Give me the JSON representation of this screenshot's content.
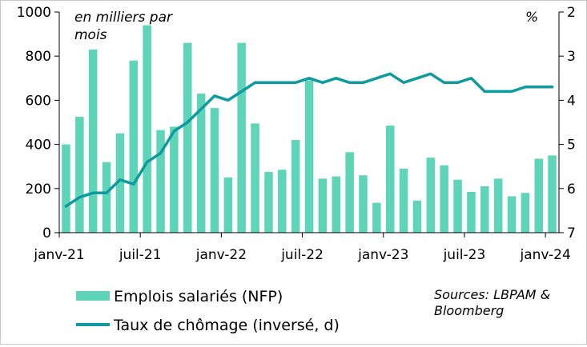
{
  "chart_data": {
    "type": "bar",
    "unit_note": "en milliers par mois",
    "right_unit": "%",
    "x_ticks": [
      "janv-21",
      "juil-21",
      "janv-22",
      "juil-22",
      "janv-23",
      "juil-23",
      "janv-24"
    ],
    "y_left": {
      "ylim": [
        0,
        1000
      ],
      "ticks": [
        0,
        200,
        400,
        600,
        800,
        1000
      ]
    },
    "y_right": {
      "ylim": [
        2,
        7
      ],
      "ticks": [
        2,
        3,
        4,
        5,
        6,
        7
      ],
      "inverted": true
    },
    "categories": [
      "janv-21",
      "févr-21",
      "mars-21",
      "avr-21",
      "mai-21",
      "juin-21",
      "juil-21",
      "août-21",
      "sept-21",
      "oct-21",
      "nov-21",
      "déc-21",
      "janv-22",
      "févr-22",
      "mars-22",
      "avr-22",
      "mai-22",
      "juin-22",
      "juil-22",
      "août-22",
      "sept-22",
      "oct-22",
      "nov-22",
      "déc-22",
      "janv-23",
      "févr-23",
      "mars-23",
      "avr-23",
      "mai-23",
      "juin-23",
      "juil-23",
      "août-23",
      "sept-23",
      "oct-23",
      "nov-23",
      "déc-23",
      "janv-24"
    ],
    "series": [
      {
        "name": "Emplois salariés (NFP)",
        "type": "bar",
        "axis": "left",
        "color": "#5ED4B8",
        "values": [
          400,
          525,
          830,
          320,
          450,
          780,
          940,
          465,
          480,
          860,
          630,
          565,
          250,
          860,
          495,
          275,
          285,
          420,
          690,
          245,
          255,
          365,
          260,
          135,
          485,
          290,
          145,
          340,
          305,
          240,
          185,
          210,
          245,
          165,
          180,
          335,
          350
        ]
      },
      {
        "name": "Taux de chômage (inversé, d)",
        "type": "line",
        "axis": "right",
        "color": "#0E9BA0",
        "values": [
          6.4,
          6.2,
          6.1,
          6.1,
          5.8,
          5.9,
          5.4,
          5.2,
          4.7,
          4.5,
          4.2,
          3.9,
          4.0,
          3.8,
          3.6,
          3.6,
          3.6,
          3.6,
          3.5,
          3.6,
          3.5,
          3.6,
          3.6,
          3.5,
          3.4,
          3.6,
          3.5,
          3.4,
          3.6,
          3.6,
          3.5,
          3.8,
          3.8,
          3.8,
          3.7,
          3.7,
          3.7
        ]
      }
    ],
    "legend": {
      "placement": "bottom-left"
    },
    "source": "Sources: LBPAM & Bloomberg"
  }
}
